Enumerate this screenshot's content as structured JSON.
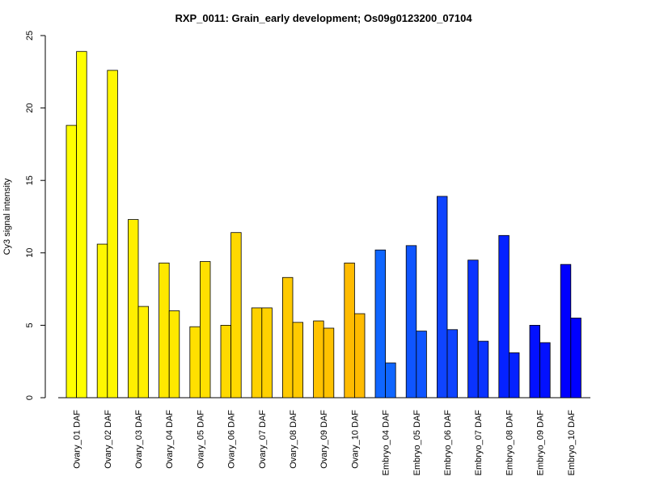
{
  "chart_data": {
    "type": "bar",
    "title": "RXP_0011: Grain_early development; Os09g0123200_07104",
    "ylabel": "Cy3 signal intensity",
    "xlabel": "",
    "ylim": [
      0,
      25
    ],
    "yticks": [
      0,
      5,
      10,
      15,
      20,
      25
    ],
    "grid": false,
    "legend": "none",
    "categories": [
      "Ovary_01 DAF",
      "Ovary_02 DAF",
      "Ovary_03 DAF",
      "Ovary_04 DAF",
      "Ovary_05 DAF",
      "Ovary_06 DAF",
      "Ovary_07 DAF",
      "Ovary_08 DAF",
      "Ovary_09 DAF",
      "Ovary_10 DAF",
      "Embryo_04 DAF",
      "Embryo_05 DAF",
      "Embryo_06 DAF",
      "Embryo_07 DAF",
      "Embryo_08 DAF",
      "Embryo_09 DAF",
      "Embryo_10 DAF"
    ],
    "colors": [
      "#FFFF00",
      "#FFF700",
      "#FFEF00",
      "#FFE800",
      "#FFE000",
      "#FFD900",
      "#FFD100",
      "#FFCA00",
      "#FFC200",
      "#FFBB00",
      "#0F66FF",
      "#0F55FF",
      "#0F44FF",
      "#0A33FF",
      "#0522FF",
      "#0311FF",
      "#0000FF"
    ],
    "series": [
      {
        "values": [
          18.8,
          10.6,
          12.3,
          9.3,
          4.9,
          5.0,
          6.2,
          8.3,
          5.3,
          9.3,
          10.2,
          10.5,
          13.9,
          9.5,
          11.2,
          5.0,
          9.2
        ]
      },
      {
        "values": [
          23.9,
          22.6,
          6.3,
          6.0,
          9.4,
          11.4,
          6.2,
          5.2,
          4.8,
          5.8,
          2.4,
          4.6,
          4.7,
          3.9,
          3.1,
          3.8,
          5.5
        ]
      }
    ]
  }
}
